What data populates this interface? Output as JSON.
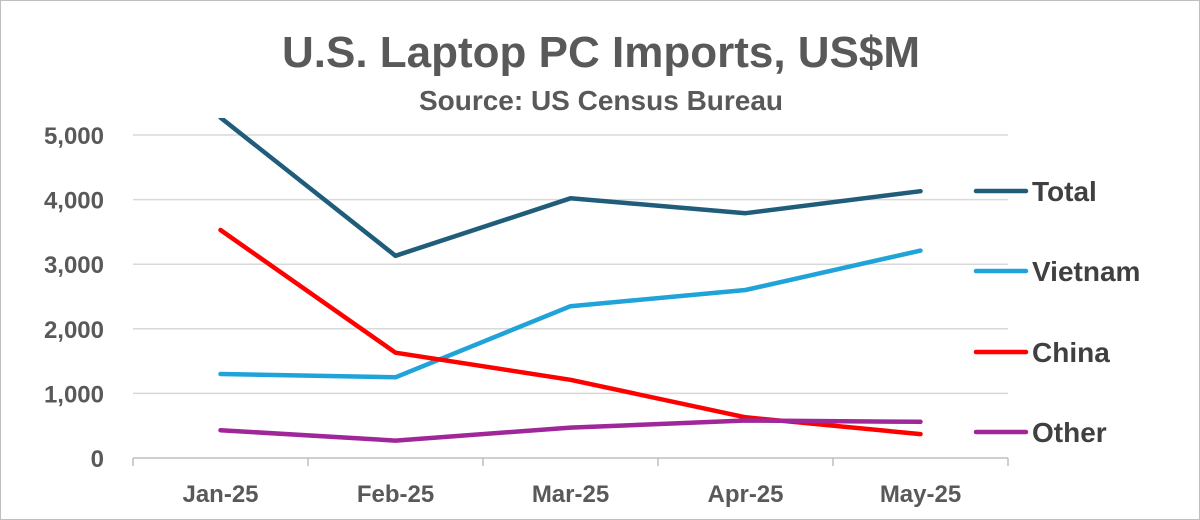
{
  "chart_data": {
    "type": "line",
    "title": "U.S. Laptop PC Imports, US$M",
    "subtitle": "Source: US Census Bureau",
    "categories": [
      "Jan-25",
      "Feb-25",
      "Mar-25",
      "Apr-25",
      "May-25"
    ],
    "ylim": [
      0,
      5000
    ],
    "yticks": [
      0,
      1000,
      2000,
      3000,
      4000,
      5000
    ],
    "ytick_labels": [
      "0",
      "1,000",
      "2,000",
      "3,000",
      "4,000",
      "5,000"
    ],
    "grid": true,
    "legend_position": "right",
    "series": [
      {
        "name": "Total",
        "color": "#1f5d7a",
        "values": [
          5270,
          3130,
          4020,
          3790,
          4130
        ]
      },
      {
        "name": "Vietnam",
        "color": "#1fa3d9",
        "values": [
          1300,
          1250,
          2350,
          2600,
          3210
        ]
      },
      {
        "name": "China",
        "color": "#ff0000",
        "values": [
          3530,
          1630,
          1210,
          630,
          370
        ]
      },
      {
        "name": "Other",
        "color": "#a0279a",
        "values": [
          430,
          270,
          470,
          580,
          560
        ]
      }
    ]
  }
}
